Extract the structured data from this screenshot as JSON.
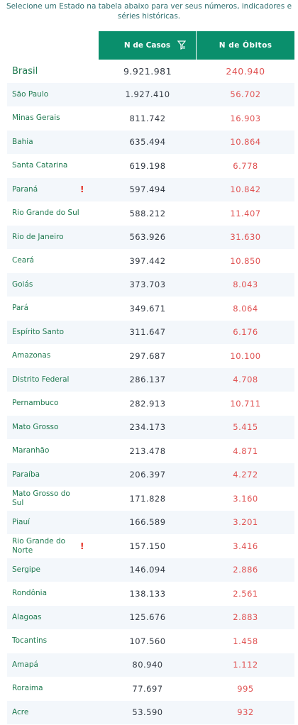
{
  "intro_text": "Selecione um Estado na tabela abaixo para ver seus números, indicadores e séries históricas.",
  "columns": {
    "casos": "N de Casos",
    "obitos": "N de Óbitos"
  },
  "icons": {
    "filter": "filter-icon",
    "alert": "alert-icon"
  },
  "colors": {
    "header_bg": "#0a8f6c",
    "name": "#1f7a50",
    "obitos": "#e05252",
    "alert": "#e3261a"
  },
  "total": {
    "name": "Brasil",
    "casos": "9.921.981",
    "obitos": "240.940"
  },
  "rows": [
    {
      "name": "São Paulo",
      "casos": "1.927.410",
      "obitos": "56.702",
      "flag": ""
    },
    {
      "name": "Minas Gerais",
      "casos": "811.742",
      "obitos": "16.903",
      "flag": ""
    },
    {
      "name": "Bahia",
      "casos": "635.494",
      "obitos": "10.864",
      "flag": ""
    },
    {
      "name": "Santa Catarina",
      "casos": "619.198",
      "obitos": "6.778",
      "flag": ""
    },
    {
      "name": "Paraná",
      "casos": "597.494",
      "obitos": "10.842",
      "flag": "!"
    },
    {
      "name": "Rio Grande do Sul",
      "casos": "588.212",
      "obitos": "11.407",
      "flag": ""
    },
    {
      "name": "Rio de Janeiro",
      "casos": "563.926",
      "obitos": "31.630",
      "flag": ""
    },
    {
      "name": "Ceará",
      "casos": "397.442",
      "obitos": "10.850",
      "flag": ""
    },
    {
      "name": "Goiás",
      "casos": "373.703",
      "obitos": "8.043",
      "flag": ""
    },
    {
      "name": "Pará",
      "casos": "349.671",
      "obitos": "8.064",
      "flag": ""
    },
    {
      "name": "Espírito Santo",
      "casos": "311.647",
      "obitos": "6.176",
      "flag": ""
    },
    {
      "name": "Amazonas",
      "casos": "297.687",
      "obitos": "10.100",
      "flag": ""
    },
    {
      "name": "Distrito Federal",
      "casos": "286.137",
      "obitos": "4.708",
      "flag": ""
    },
    {
      "name": "Pernambuco",
      "casos": "282.913",
      "obitos": "10.711",
      "flag": ""
    },
    {
      "name": "Mato Grosso",
      "casos": "234.173",
      "obitos": "5.415",
      "flag": ""
    },
    {
      "name": "Maranhão",
      "casos": "213.478",
      "obitos": "4.871",
      "flag": ""
    },
    {
      "name": "Paraíba",
      "casos": "206.397",
      "obitos": "4.272",
      "flag": ""
    },
    {
      "name": "Mato Grosso do Sul",
      "casos": "171.828",
      "obitos": "3.160",
      "flag": ""
    },
    {
      "name": "Piauí",
      "casos": "166.589",
      "obitos": "3.201",
      "flag": ""
    },
    {
      "name": "Rio Grande do Norte",
      "casos": "157.150",
      "obitos": "3.416",
      "flag": "!"
    },
    {
      "name": "Sergipe",
      "casos": "146.094",
      "obitos": "2.886",
      "flag": ""
    },
    {
      "name": "Rondônia",
      "casos": "138.133",
      "obitos": "2.561",
      "flag": ""
    },
    {
      "name": "Alagoas",
      "casos": "125.676",
      "obitos": "2.883",
      "flag": ""
    },
    {
      "name": "Tocantins",
      "casos": "107.560",
      "obitos": "1.458",
      "flag": ""
    },
    {
      "name": "Amapá",
      "casos": "80.940",
      "obitos": "1.112",
      "flag": ""
    },
    {
      "name": "Roraima",
      "casos": "77.697",
      "obitos": "995",
      "flag": ""
    },
    {
      "name": "Acre",
      "casos": "53.590",
      "obitos": "932",
      "flag": ""
    }
  ]
}
